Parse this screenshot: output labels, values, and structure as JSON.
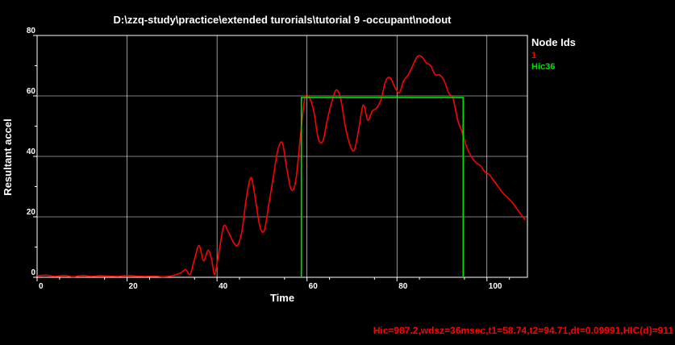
{
  "colors": {
    "background": "#000000",
    "axes": "#ffffff",
    "grid": "#ffffff",
    "series_node1": "#ff0000",
    "series_hic36": "#00e000",
    "annotation": "#ff0000"
  },
  "legend": {
    "title": "Node Ids",
    "items": [
      "1",
      "Hic36"
    ]
  },
  "annotation": "Hic=987.2,wdsz=36msec,t1=58.74,t2=94.71,dt=0.09991,HIC(d)=911",
  "chart_data": {
    "type": "line",
    "title": "D:\\zzq-study\\practice\\extended turorials\\tutorial 9 -occupant\\nodout",
    "xlabel": "Time",
    "ylabel": "Resultant accel",
    "xlim": [
      0,
      109
    ],
    "ylim": [
      0,
      80
    ],
    "x_ticks": [
      0,
      20,
      40,
      60,
      80,
      100
    ],
    "y_ticks": [
      0,
      20,
      40,
      60,
      80
    ],
    "grid": true,
    "legend_placement": "right",
    "series": [
      {
        "name": "1",
        "color": "#ff0000",
        "x": [
          0,
          2,
          4,
          6,
          8,
          10,
          12,
          14,
          16,
          18,
          20,
          22,
          24,
          26,
          28,
          30,
          32,
          33,
          34,
          35,
          36,
          37,
          38,
          38.8,
          39.5,
          40.5,
          41.5,
          42.5,
          43.5,
          44.5,
          45.5,
          46.5,
          47.5,
          48.3,
          49.5,
          50.5,
          51.5,
          52.5,
          53.5,
          54.5,
          55.5,
          56.5,
          57.5,
          58.5,
          59.5,
          60.5,
          61.5,
          62.5,
          63.5,
          64.5,
          65.5,
          66.5,
          67.5,
          68.5,
          69.5,
          70.5,
          71.5,
          72.5,
          73.5,
          74.5,
          75.5,
          76.5,
          77.5,
          78.5,
          79.5,
          80.5,
          81.5,
          82.5,
          83.5,
          84.5,
          85.5,
          86.5,
          87.5,
          88.5,
          89.5,
          90.5,
          91.5,
          92.5,
          93.5,
          94.5,
          95.5,
          96.5,
          97.5,
          98.5,
          99.5,
          100.5,
          101.5,
          102.5,
          103.5,
          104.5,
          105.5,
          106.5,
          107.5,
          108.5
        ],
        "y": [
          0.5,
          0.7,
          0.3,
          0.6,
          0.2,
          0.6,
          0.3,
          0.5,
          0.4,
          0.3,
          0.6,
          0.4,
          0.3,
          0.4,
          0.2,
          0.5,
          1.5,
          2.5,
          1.0,
          6.0,
          10.5,
          5.5,
          9.0,
          6.0,
          1.0,
          9.0,
          17.0,
          15.0,
          12.0,
          10.5,
          15.0,
          26.0,
          33.0,
          28.0,
          17.0,
          15.5,
          24.0,
          33.0,
          42.0,
          44.5,
          36.0,
          29.0,
          32.0,
          46.0,
          59.0,
          59.5,
          55.0,
          46.0,
          45.0,
          52.0,
          58.0,
          62.0,
          59.0,
          50.0,
          44.0,
          42.0,
          49.0,
          57.0,
          52.0,
          55.0,
          56.0,
          59.0,
          65.0,
          66.0,
          63.0,
          61.0,
          65.0,
          67.0,
          70.0,
          73.0,
          73.0,
          71.0,
          70.0,
          67.0,
          67.0,
          65.0,
          61.0,
          59.0,
          52.0,
          48.0,
          43.0,
          40.0,
          38.0,
          37.0,
          35.0,
          34.0,
          32.0,
          30.0,
          28.0,
          26.5,
          25.0,
          23.0,
          21.0,
          19.0
        ]
      },
      {
        "name": "Hic36",
        "color": "#00e000",
        "x": [
          58.74,
          58.74,
          94.71,
          94.71
        ],
        "y": [
          0,
          59.5,
          59.5,
          0
        ]
      }
    ]
  }
}
